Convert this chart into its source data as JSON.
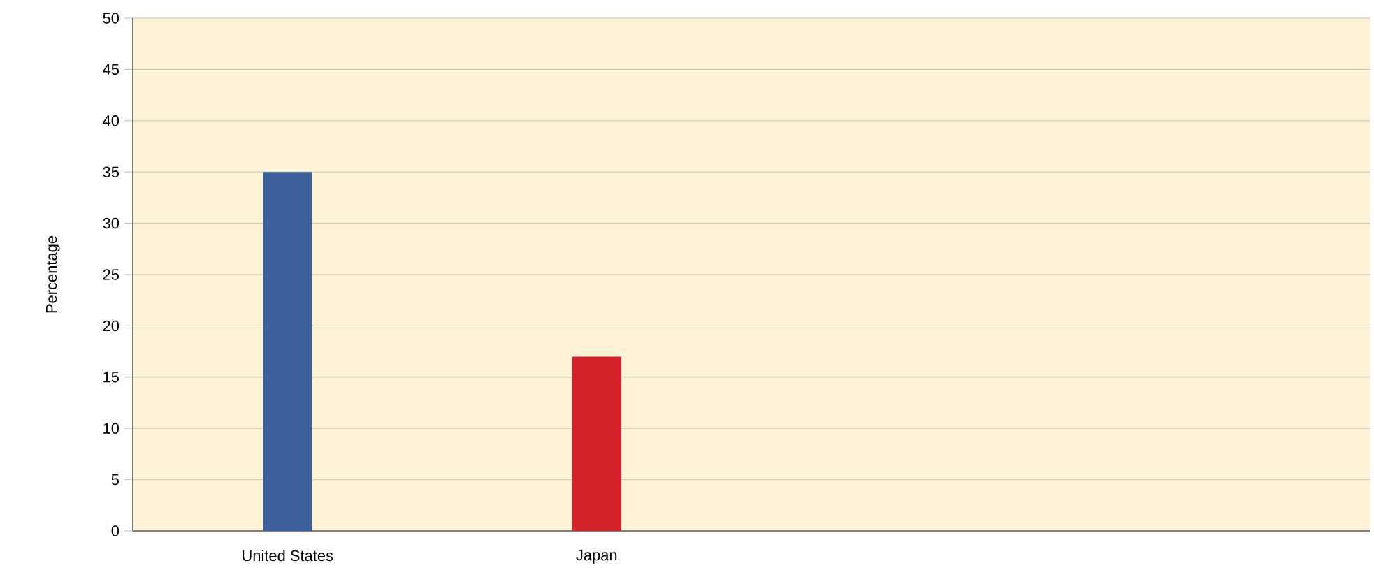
{
  "chart_data": {
    "type": "bar",
    "categories": [
      "United States",
      "Japan",
      null,
      null
    ],
    "values": [
      35,
      17,
      null,
      null
    ],
    "colors": [
      "#3b5f99",
      "#d2232a",
      null,
      null
    ],
    "ylabel": "Percentage",
    "ylim": [
      0,
      50
    ],
    "yticks": [
      0,
      5,
      10,
      15,
      20,
      25,
      30,
      35,
      40,
      45,
      50
    ],
    "grid": "y"
  }
}
